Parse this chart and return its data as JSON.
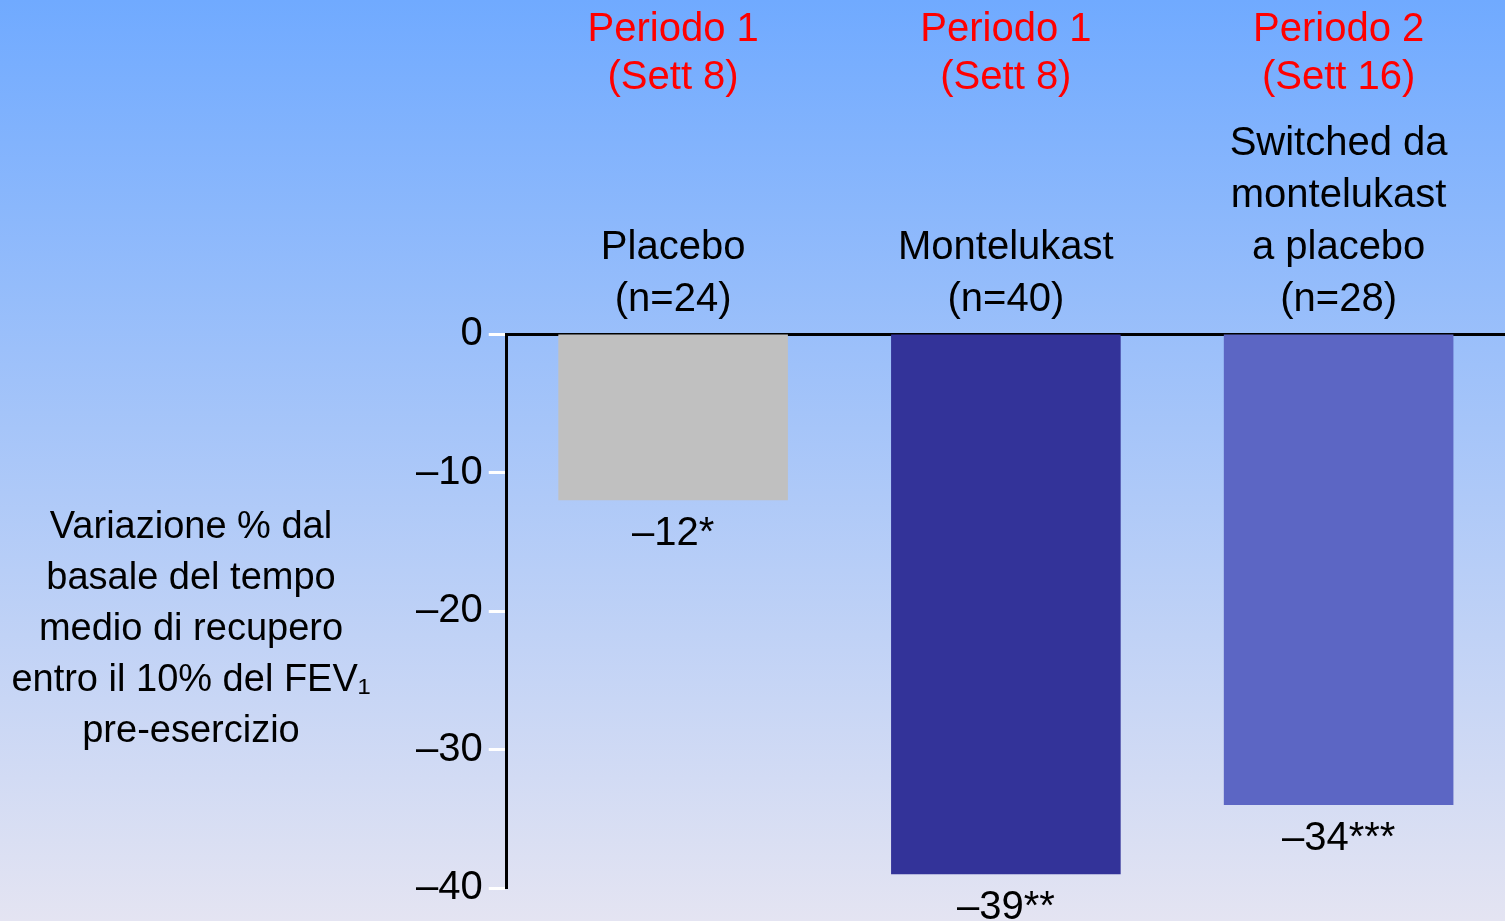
{
  "chart_data": {
    "type": "bar",
    "ylabel": "Variazione % dal basale del tempo medio di recupero entro il 10% del FEV₁ pre-esercizio",
    "categories": [
      "Placebo\n(n=24)",
      "Montelukast\n(n=40)",
      "Switched da\nmontelukast\na placebo\n(n=28)"
    ],
    "values": [
      -12,
      -39,
      -34
    ],
    "colors": [
      "#c0c0c0",
      "#333399",
      "#5c66c4"
    ],
    "value_labels": [
      "–12*",
      "–39**",
      "–34***"
    ],
    "ylim": [
      -40,
      0
    ],
    "yticks": [
      {
        "value": 0,
        "label": "0"
      },
      {
        "value": -10,
        "label": "–10"
      },
      {
        "value": -20,
        "label": "–20"
      },
      {
        "value": -30,
        "label": "–30"
      },
      {
        "value": -40,
        "label": "–40"
      }
    ],
    "annotations": [
      "Periodo 1\n(Sett 8)",
      "Periodo 1\n(Sett 8)",
      "Periodo 2\n(Sett 16)"
    ],
    "grid": false,
    "legend": false
  }
}
